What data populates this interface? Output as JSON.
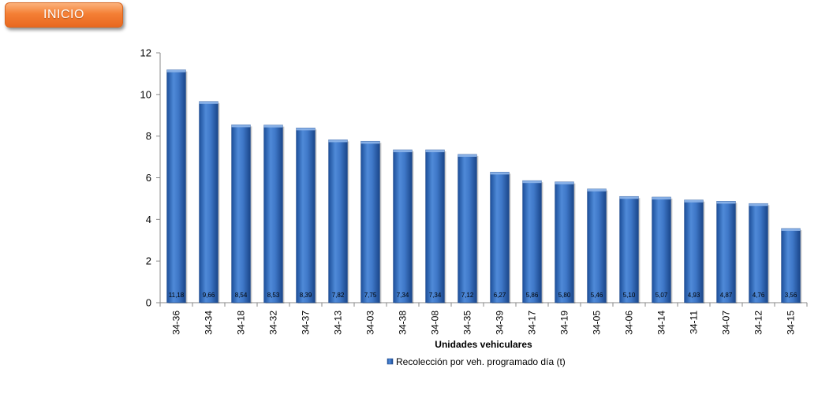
{
  "button": {
    "label": "INICIO"
  },
  "chart_data": {
    "type": "bar",
    "title": "",
    "xlabel": "Unidades vehiculares",
    "ylabel": "",
    "ylim": [
      0,
      12
    ],
    "yticks": [
      0,
      2,
      4,
      6,
      8,
      10,
      12
    ],
    "grid": false,
    "legend_position": "bottom",
    "categories": [
      "34-36",
      "34-34",
      "34-18",
      "34-32",
      "34-37",
      "34-13",
      "34-03",
      "34-38",
      "34-08",
      "34-35",
      "34-39",
      "34-17",
      "34-19",
      "34-05",
      "34-06",
      "34-14",
      "34-11",
      "34-07",
      "34-12",
      "34-15"
    ],
    "series": [
      {
        "name": "Recolección por veh. programado día (t)",
        "values": [
          11.18,
          9.66,
          8.54,
          8.53,
          8.39,
          7.82,
          7.75,
          7.34,
          7.34,
          7.12,
          6.27,
          5.86,
          5.8,
          5.46,
          5.1,
          5.07,
          4.93,
          4.87,
          4.76,
          3.56
        ],
        "data_labels": [
          "11,18",
          "9,66",
          "8,54",
          "8,53",
          "8,39",
          "7,82",
          "7,75",
          "7,34",
          "7,34",
          "7,12",
          "6,27",
          "5,86",
          "5,80",
          "5,46",
          "5,10",
          "5,07",
          "4,93",
          "4,87",
          "4,76",
          "3,56"
        ],
        "color": "#3b72c4"
      }
    ]
  }
}
